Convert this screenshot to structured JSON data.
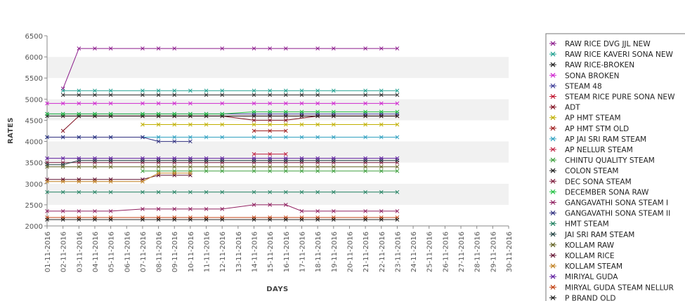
{
  "chart_data": {
    "type": "line",
    "title": "",
    "xlabel": "DAYS",
    "ylabel": "RATES",
    "ylim": [
      2000,
      6500
    ],
    "yticks": [
      2000,
      2500,
      3000,
      3500,
      4000,
      4500,
      5000,
      5500,
      6000,
      6500
    ],
    "grid": "alternating horizontal bands",
    "legend": "right",
    "x": [
      "01-11-2016",
      "02-11-2016",
      "03-11-2016",
      "04-11-2016",
      "05-11-2016",
      "06-11-2016",
      "07-11-2016",
      "08-11-2016",
      "09-11-2016",
      "10-11-2016",
      "11-11-2016",
      "12-11-2016",
      "13-11-2016",
      "14-11-2016",
      "15-11-2016",
      "16-11-2016",
      "17-11-2016",
      "18-11-2016",
      "19-11-2016",
      "20-11-2016",
      "21-11-2016",
      "22-11-2016",
      "23-11-2016",
      "24-11-2016",
      "25-11-2016",
      "26-11-2016",
      "27-11-2016",
      "28-11-2016",
      "29-11-2016",
      "30-11-2016"
    ],
    "series": [
      {
        "name": "RAW RICE DVG JJL NEW",
        "color": "#8b1a8b",
        "values": [
          null,
          5250,
          6200,
          6200,
          6200,
          null,
          6200,
          6200,
          6200,
          null,
          null,
          6200,
          null,
          6200,
          6200,
          6200,
          null,
          6200,
          6200,
          null,
          6200,
          6200,
          6200,
          null,
          null,
          null,
          null,
          null,
          null,
          null
        ]
      },
      {
        "name": "RAW RICE KAVERI SONA NEW",
        "color": "#20a090",
        "values": [
          null,
          5200,
          5200,
          5200,
          5200,
          null,
          5200,
          5200,
          5200,
          5200,
          5200,
          5200,
          null,
          5200,
          5200,
          5200,
          5200,
          5200,
          5200,
          null,
          5200,
          5200,
          5200,
          null,
          null,
          null,
          null,
          null,
          null,
          null
        ]
      },
      {
        "name": "RAW RICE-BROKEN",
        "color": "#202020",
        "values": [
          null,
          5100,
          5100,
          5100,
          5100,
          null,
          5100,
          5100,
          5100,
          null,
          5100,
          5100,
          null,
          5100,
          5100,
          5100,
          5100,
          5100,
          null,
          null,
          5100,
          5100,
          5100,
          null,
          null,
          null,
          null,
          null,
          null,
          null
        ]
      },
      {
        "name": "SONA BROKEN",
        "color": "#d02ad0",
        "values": [
          4900,
          4900,
          4900,
          4900,
          4900,
          null,
          4900,
          4900,
          4900,
          4900,
          null,
          4900,
          null,
          4900,
          4900,
          4900,
          4900,
          4900,
          4900,
          null,
          4900,
          4900,
          4900,
          null,
          null,
          null,
          null,
          null,
          null,
          null
        ]
      },
      {
        "name": "STEAM 48",
        "color": "#40409a",
        "values": [
          4650,
          4650,
          4650,
          4650,
          4650,
          null,
          4650,
          4650,
          4650,
          4650,
          4650,
          4650,
          null,
          4650,
          4650,
          4650,
          4650,
          4650,
          4650,
          null,
          4650,
          4650,
          4650,
          null,
          null,
          null,
          null,
          null,
          null,
          null
        ]
      },
      {
        "name": "STEAM RICE PURE SONA NEW",
        "color": "#c0102a",
        "values": [
          null,
          4600,
          4600,
          4600,
          4600,
          null,
          4600,
          4600,
          4600,
          4600,
          4600,
          4600,
          null,
          4600,
          4600,
          4600,
          4600,
          4600,
          4600,
          null,
          4600,
          4600,
          4600,
          null,
          null,
          null,
          null,
          null,
          null,
          null
        ]
      },
      {
        "name": "ADT",
        "color": "#801020",
        "values": [
          null,
          4250,
          4600,
          4600,
          4600,
          null,
          4600,
          4600,
          4600,
          4600,
          4600,
          4600,
          null,
          4500,
          4500,
          4500,
          null,
          4600,
          4600,
          null,
          4600,
          4600,
          4600,
          null,
          null,
          null,
          null,
          null,
          null,
          null
        ]
      },
      {
        "name": "AP HMT STEAM",
        "color": "#c0b000",
        "values": [
          null,
          null,
          null,
          null,
          null,
          null,
          4400,
          4400,
          4400,
          4400,
          4400,
          4400,
          null,
          4400,
          4400,
          4400,
          4400,
          4400,
          4400,
          null,
          4400,
          4400,
          4400,
          null,
          null,
          null,
          null,
          null,
          null,
          null
        ]
      },
      {
        "name": "AP HMT STM OLD",
        "color": "#a02020",
        "values": [
          null,
          null,
          null,
          null,
          null,
          null,
          null,
          null,
          null,
          null,
          null,
          null,
          null,
          4250,
          4250,
          4250,
          null,
          null,
          null,
          null,
          null,
          null,
          null,
          null,
          null,
          null,
          null,
          null,
          null,
          null
        ]
      },
      {
        "name": "AP JAI SRI RAM STEAM",
        "color": "#30a0c0",
        "values": [
          4100,
          4100,
          4100,
          4100,
          4100,
          null,
          4100,
          4100,
          4100,
          4100,
          4100,
          4100,
          null,
          4100,
          4100,
          4100,
          4100,
          4100,
          4100,
          null,
          4100,
          4100,
          4100,
          null,
          null,
          null,
          null,
          null,
          null,
          null
        ]
      },
      {
        "name": "AP NELLUR STEAM",
        "color": "#c02040",
        "values": [
          null,
          null,
          null,
          null,
          null,
          null,
          null,
          null,
          null,
          null,
          null,
          null,
          null,
          3700,
          3700,
          3700,
          null,
          null,
          null,
          null,
          null,
          null,
          null,
          null,
          null,
          null,
          null,
          null,
          null,
          null
        ]
      },
      {
        "name": "CHINTU QUALITY STEAM",
        "color": "#40a040",
        "values": [
          null,
          null,
          null,
          null,
          null,
          null,
          3300,
          3300,
          3300,
          3300,
          3300,
          3300,
          null,
          3300,
          3300,
          3300,
          3300,
          3300,
          3300,
          null,
          3300,
          3300,
          3300,
          null,
          null,
          null,
          null,
          null,
          null,
          null
        ]
      },
      {
        "name": "COLON STEAM",
        "color": "#202020",
        "values": [
          4600,
          4600,
          4600,
          4600,
          4600,
          null,
          4600,
          4600,
          4600,
          4600,
          4600,
          4600,
          null,
          4600,
          4600,
          4600,
          4600,
          4600,
          4600,
          null,
          4600,
          4600,
          4600,
          null,
          null,
          null,
          null,
          null,
          null,
          null
        ]
      },
      {
        "name": "DEC SONA STEAM",
        "color": "#802040",
        "values": [
          3500,
          3500,
          3500,
          3500,
          3500,
          null,
          3500,
          3500,
          3500,
          3500,
          3500,
          3500,
          null,
          3500,
          3500,
          3500,
          3500,
          3500,
          3500,
          null,
          3500,
          3500,
          3500,
          null,
          null,
          null,
          null,
          null,
          null,
          null
        ]
      },
      {
        "name": "DECEMBER SONA RAW",
        "color": "#20c040",
        "values": [
          4650,
          4650,
          4650,
          4650,
          4650,
          null,
          4650,
          4650,
          4650,
          4650,
          4650,
          4650,
          null,
          4700,
          4700,
          4700,
          4700,
          4700,
          4700,
          null,
          4700,
          4700,
          4700,
          null,
          null,
          null,
          null,
          null,
          null,
          null
        ]
      },
      {
        "name": "GANGAVATHI SONA STEAM I",
        "color": "#902060",
        "values": [
          2350,
          2350,
          2350,
          2350,
          2350,
          null,
          2400,
          2400,
          2400,
          2400,
          2400,
          2400,
          null,
          2500,
          2500,
          2500,
          2350,
          2350,
          2350,
          null,
          2350,
          2350,
          2350,
          null,
          null,
          null,
          null,
          null,
          null,
          null
        ]
      },
      {
        "name": "GANGAVATHI SONA STEAM II",
        "color": "#303080",
        "values": [
          4100,
          4100,
          4100,
          4100,
          4100,
          null,
          4100,
          4000,
          4000,
          4000,
          null,
          null,
          null,
          null,
          null,
          null,
          null,
          null,
          null,
          null,
          null,
          null,
          null,
          null,
          null,
          null,
          null,
          null,
          null,
          null
        ]
      },
      {
        "name": "HMT STEAM",
        "color": "#208060",
        "values": [
          2800,
          2800,
          2800,
          2800,
          2800,
          null,
          2800,
          2800,
          2800,
          2800,
          2800,
          2800,
          null,
          2800,
          2800,
          2800,
          2800,
          2800,
          2800,
          null,
          2800,
          2800,
          2800,
          null,
          null,
          null,
          null,
          null,
          null,
          null
        ]
      },
      {
        "name": "JAI SRI RAM STEAM",
        "color": "#204040",
        "values": [
          3450,
          3450,
          3550,
          3550,
          3550,
          null,
          3550,
          3550,
          3550,
          3550,
          3550,
          3550,
          null,
          3550,
          3550,
          3550,
          3550,
          3550,
          3550,
          null,
          3550,
          3550,
          3550,
          null,
          null,
          null,
          null,
          null,
          null,
          null
        ]
      },
      {
        "name": "KOLLAM RAW",
        "color": "#606020",
        "values": [
          3400,
          3400,
          3400,
          3400,
          3400,
          null,
          3400,
          3400,
          3400,
          3400,
          3400,
          3400,
          null,
          3400,
          3400,
          3400,
          3400,
          3400,
          3400,
          null,
          3400,
          3400,
          3400,
          null,
          null,
          null,
          null,
          null,
          null,
          null
        ]
      },
      {
        "name": "KOLLAM RICE",
        "color": "#601030",
        "values": [
          3100,
          3100,
          3100,
          3100,
          3100,
          null,
          3100,
          3200,
          3200,
          3200,
          null,
          null,
          null,
          null,
          null,
          null,
          null,
          null,
          null,
          null,
          null,
          null,
          null,
          null,
          null,
          null,
          null,
          null,
          null,
          null
        ]
      },
      {
        "name": "KOLLAM STEAM",
        "color": "#c08020",
        "values": [
          3050,
          3050,
          3050,
          3050,
          3050,
          null,
          3050,
          3250,
          3250,
          3250,
          null,
          null,
          null,
          null,
          null,
          null,
          null,
          null,
          null,
          null,
          null,
          null,
          null,
          null,
          null,
          null,
          null,
          null,
          null,
          null
        ]
      },
      {
        "name": "MIRIYAL GUDA",
        "color": "#6020a0",
        "values": [
          3600,
          3600,
          3600,
          3600,
          3600,
          null,
          3600,
          3600,
          3600,
          3600,
          3600,
          3600,
          null,
          3600,
          3600,
          3600,
          3600,
          3600,
          3600,
          null,
          3600,
          3600,
          3600,
          null,
          null,
          null,
          null,
          null,
          null,
          null
        ]
      },
      {
        "name": "MIRYAL GUDA STEAM NELLUR",
        "color": "#c04010",
        "values": [
          2200,
          2200,
          2200,
          2200,
          2200,
          null,
          2200,
          2200,
          2200,
          2200,
          2200,
          2200,
          null,
          2200,
          2200,
          2200,
          2200,
          2200,
          2200,
          null,
          2200,
          2200,
          2200,
          null,
          null,
          null,
          null,
          null,
          null,
          null
        ]
      },
      {
        "name": "P BRAND OLD",
        "color": "#202020",
        "values": [
          2150,
          2150,
          2150,
          2150,
          2150,
          null,
          2150,
          2150,
          2150,
          2150,
          2150,
          2150,
          null,
          2150,
          2150,
          2150,
          2150,
          2150,
          2150,
          null,
          2150,
          2150,
          2150,
          null,
          null,
          null,
          null,
          null,
          null,
          null
        ]
      }
    ]
  }
}
